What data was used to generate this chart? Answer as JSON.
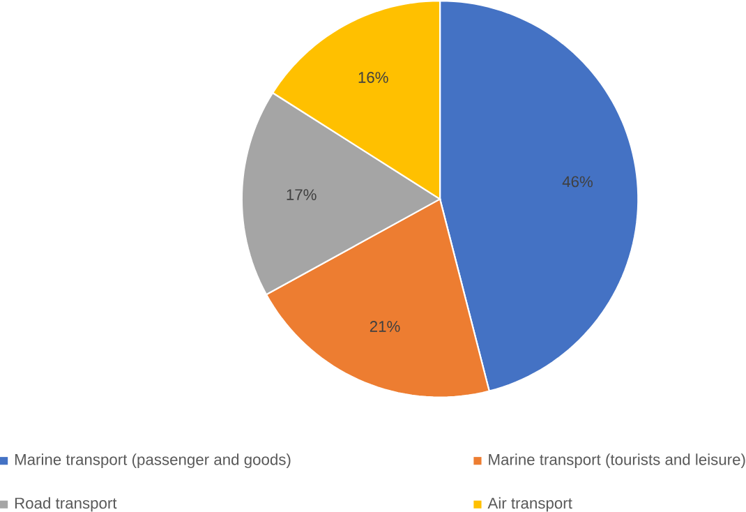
{
  "chart_data": {
    "type": "pie",
    "categories": [
      "Marine transport (passenger and goods)",
      "Marine transport (tourists and leisure)",
      "Road transport",
      "Air transport"
    ],
    "values": [
      46,
      21,
      17,
      16
    ],
    "value_labels": [
      "46%",
      "21%",
      "17%",
      "16%"
    ],
    "colors": [
      "#4472c4",
      "#ed7d31",
      "#a5a5a5",
      "#ffc000"
    ],
    "legend": "bottom"
  }
}
